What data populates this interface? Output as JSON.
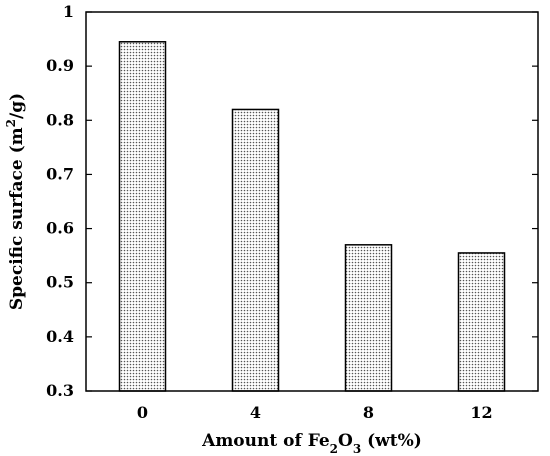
{
  "chart_data": {
    "type": "bar",
    "categories": [
      "0",
      "4",
      "8",
      "12"
    ],
    "values": [
      0.945,
      0.82,
      0.57,
      0.555
    ],
    "xlabel_parts": [
      "Amount of Fe",
      "2",
      "O",
      "3",
      " (wt%)"
    ],
    "ylabel_parts": [
      "Specific surface (m",
      "2",
      "/g)"
    ],
    "ylim": [
      0.3,
      1
    ],
    "yticks": [
      "0.3",
      "0.4",
      "0.5",
      "0.6",
      "0.7",
      "0.8",
      "0.9",
      "1"
    ],
    "grid": false,
    "legend": "none",
    "bar_fill": "dotted-gray",
    "colors": {
      "bar_edge": "#000000",
      "bar_dot": "#555555",
      "axis": "#000000"
    }
  }
}
